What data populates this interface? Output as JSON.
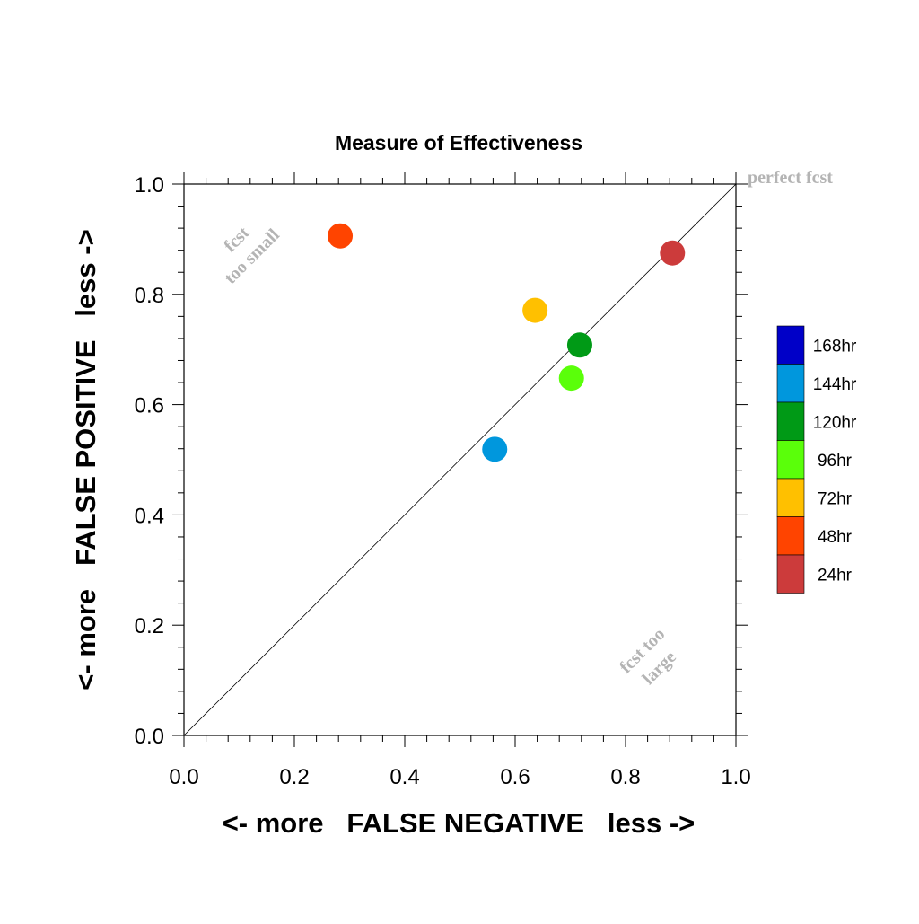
{
  "chart_data": {
    "type": "scatter",
    "title": "Measure of Effectiveness",
    "xlabel": "<- more   FALSE NEGATIVE   less ->",
    "ylabel": "<- more   FALSE POSITIVE   less ->",
    "xlim": [
      0.0,
      1.0
    ],
    "ylim": [
      0.0,
      1.0
    ],
    "x_ticks": [
      "0.0",
      "0.2",
      "0.4",
      "0.6",
      "0.8",
      "1.0"
    ],
    "y_ticks": [
      "0.0",
      "0.2",
      "0.4",
      "0.6",
      "0.8",
      "1.0"
    ],
    "grid": false,
    "diagonal_line": true,
    "legend_position": "right",
    "annotations": {
      "perfect": "perfect fcst",
      "too_small_1": "fcst",
      "too_small_2": "too small",
      "too_large_1": "fcst too",
      "too_large_2": "large"
    },
    "series": [
      {
        "name": "24hr",
        "x": 0.885,
        "y": 0.875,
        "color": "#cc3b3b"
      },
      {
        "name": "48hr",
        "x": 0.283,
        "y": 0.906,
        "color": "#ff4400"
      },
      {
        "name": "72hr",
        "x": 0.636,
        "y": 0.771,
        "color": "#ffc000"
      },
      {
        "name": "96hr",
        "x": 0.702,
        "y": 0.648,
        "color": "#5aff0a"
      },
      {
        "name": "120hr",
        "x": 0.717,
        "y": 0.708,
        "color": "#009a16"
      },
      {
        "name": "144hr",
        "x": 0.563,
        "y": 0.519,
        "color": "#0097dd"
      }
    ],
    "legend": [
      {
        "label": "168hr",
        "color": "#0000c8"
      },
      {
        "label": "144hr",
        "color": "#0097dd"
      },
      {
        "label": "120hr",
        "color": "#009a16"
      },
      {
        "label": "96hr",
        "color": "#5aff0a"
      },
      {
        "label": "72hr",
        "color": "#ffc000"
      },
      {
        "label": "48hr",
        "color": "#ff4400"
      },
      {
        "label": "24hr",
        "color": "#cc3b3b"
      }
    ]
  }
}
